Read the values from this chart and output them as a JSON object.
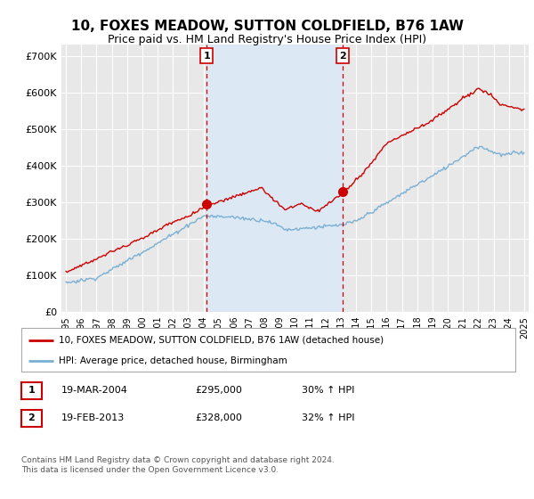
{
  "title": "10, FOXES MEADOW, SUTTON COLDFIELD, B76 1AW",
  "subtitle": "Price paid vs. HM Land Registry's House Price Index (HPI)",
  "title_fontsize": 11,
  "subtitle_fontsize": 9,
  "ylabel_ticks": [
    "£0",
    "£100K",
    "£200K",
    "£300K",
    "£400K",
    "£500K",
    "£600K",
    "£700K"
  ],
  "ytick_values": [
    0,
    100000,
    200000,
    300000,
    400000,
    500000,
    600000,
    700000
  ],
  "ylim": [
    0,
    730000
  ],
  "xlim_start": 1994.7,
  "xlim_end": 2025.3,
  "background_color": "#ffffff",
  "plot_bg_color": "#e8e8e8",
  "grid_color": "#ffffff",
  "shade_color": "#dce9f5",
  "sale1_year": 2004.21,
  "sale1_price": 295000,
  "sale2_year": 2013.12,
  "sale2_price": 328000,
  "red_line_color": "#cc0000",
  "blue_line_color": "#7ab0d4",
  "dashed_color": "#cc0000",
  "legend_line1": "10, FOXES MEADOW, SUTTON COLDFIELD, B76 1AW (detached house)",
  "legend_line2": "HPI: Average price, detached house, Birmingham",
  "table_row1": [
    "1",
    "19-MAR-2004",
    "£295,000",
    "30% ↑ HPI"
  ],
  "table_row2": [
    "2",
    "19-FEB-2013",
    "£328,000",
    "32% ↑ HPI"
  ],
  "footer": "Contains HM Land Registry data © Crown copyright and database right 2024.\nThis data is licensed under the Open Government Licence v3.0.",
  "xtick_years": [
    1995,
    1996,
    1997,
    1998,
    1999,
    2000,
    2001,
    2002,
    2003,
    2004,
    2005,
    2006,
    2007,
    2008,
    2009,
    2010,
    2011,
    2012,
    2013,
    2014,
    2015,
    2016,
    2017,
    2018,
    2019,
    2020,
    2021,
    2022,
    2023,
    2024,
    2025
  ]
}
